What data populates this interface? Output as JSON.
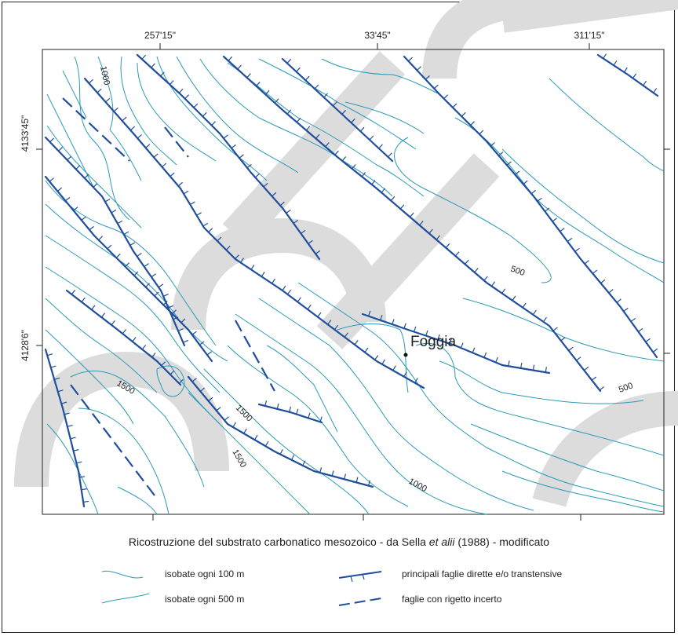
{
  "coords": {
    "top": [
      "257'15\"",
      "33'45\"",
      "311'15\""
    ],
    "left": [
      "4133'45\"",
      "4128'6\""
    ]
  },
  "city": {
    "name": "Foggia"
  },
  "contour_labels": [
    "1000",
    "500",
    "500",
    "1500",
    "1500",
    "1500",
    "1000"
  ],
  "caption": {
    "before": "Ricostruzione del substrato carbonatico mesozoico - da Sella ",
    "italic": "et alii",
    "after": " (1988) - modificato"
  },
  "legend": {
    "isobate_100": "isobate ogni 100 m",
    "isobate_500": "isobate ogni 500 m",
    "faults_main": "principali faglie dirette e/o transtensive",
    "faults_uncertain": "faglie con rigetto incerto"
  },
  "colors": {
    "contour": "#2a9ab8",
    "fault": "#1f4e9c",
    "frame": "#222222",
    "watermark": "#d9d9d9"
  }
}
